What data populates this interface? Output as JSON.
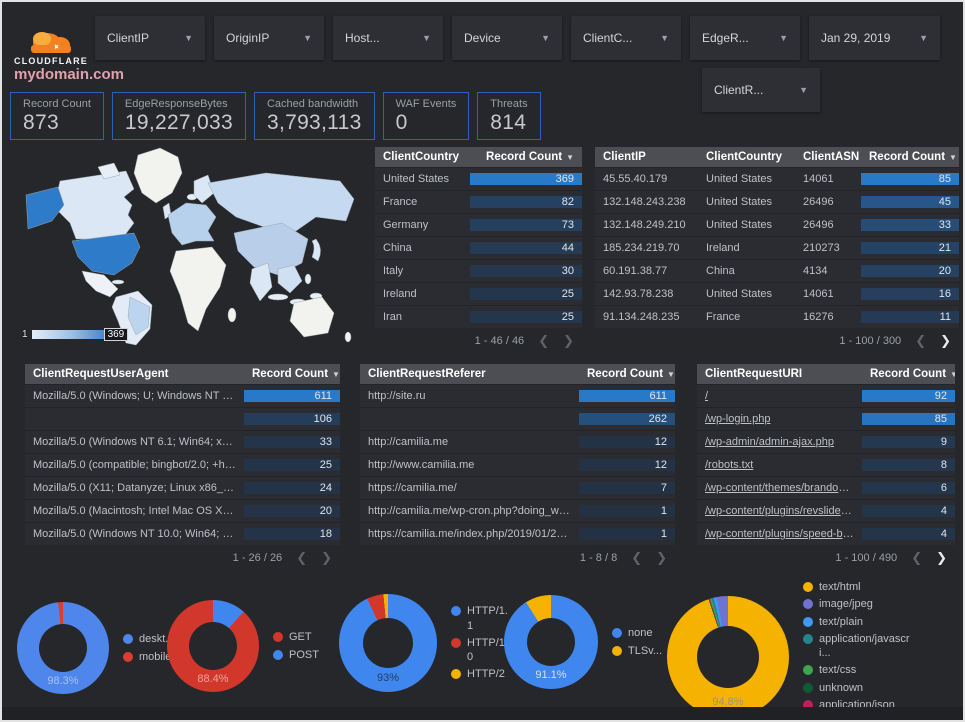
{
  "header": {
    "logo_text": "CLOUDFLARE",
    "filters": [
      {
        "label": "ClientIP"
      },
      {
        "label": "OriginIP"
      },
      {
        "label": "Host..."
      },
      {
        "label": "Device"
      },
      {
        "label": "ClientC..."
      },
      {
        "label": "EdgeR..."
      }
    ],
    "date_filter": {
      "label": "Jan 29, 2019"
    },
    "filter_row2": {
      "label": "ClientR..."
    }
  },
  "title": "mydomain.com",
  "colors": {
    "accent_blue": "#2979c9",
    "heat_base": "#243143",
    "scorecard_border": "#2c62b5",
    "title_pink": "#e2a0ad"
  },
  "scorecards": [
    {
      "label": "Record Count",
      "value": "873"
    },
    {
      "label": "EdgeResponseBytes",
      "value": "19,227,033"
    },
    {
      "label": "Cached bandwidth",
      "value": "3,793,113"
    },
    {
      "label": "WAF Events",
      "value": "0"
    },
    {
      "label": "Threats",
      "value": "814"
    }
  ],
  "map": {
    "legend_min": "1",
    "legend_max": "369"
  },
  "tables": {
    "country": {
      "columns": [
        "ClientCountry",
        "Record Count"
      ],
      "num_col": 1,
      "max": 369,
      "first_col_links": false,
      "rows": [
        [
          "United States",
          369
        ],
        [
          "France",
          82
        ],
        [
          "Germany",
          73
        ],
        [
          "China",
          44
        ],
        [
          "Italy",
          30
        ],
        [
          "Ireland",
          25
        ],
        [
          "Iran",
          25
        ]
      ],
      "pagination": {
        "text": "1 - 46 / 46",
        "prev_active": false,
        "next_active": false
      }
    },
    "client_ip": {
      "columns": [
        "ClientIP",
        "ClientCountry",
        "ClientASN",
        "Record Count"
      ],
      "num_col": 3,
      "max": 85,
      "first_col_links": false,
      "rows": [
        [
          "45.55.40.179",
          "United States",
          "14061",
          85
        ],
        [
          "132.148.243.238",
          "United States",
          "26496",
          45
        ],
        [
          "132.148.249.210",
          "United States",
          "26496",
          33
        ],
        [
          "185.234.219.70",
          "Ireland",
          "210273",
          21
        ],
        [
          "60.191.38.77",
          "China",
          "4134",
          20
        ],
        [
          "142.93.78.238",
          "United States",
          "14061",
          16
        ],
        [
          "91.134.248.235",
          "France",
          "16276",
          11
        ]
      ],
      "pagination": {
        "text": "1 - 100 / 300",
        "prev_active": false,
        "next_active": true
      }
    },
    "user_agent": {
      "columns": [
        "ClientRequestUserAgent",
        "Record Count"
      ],
      "num_col": 1,
      "max": 611,
      "first_col_links": false,
      "rows": [
        [
          "Mozilla/5.0 (Windows; U; Windows NT 5.1; en-U...",
          611
        ],
        [
          "",
          106
        ],
        [
          "Mozilla/5.0 (Windows NT 6.1; Win64; x64; rv:64...",
          33
        ],
        [
          "Mozilla/5.0 (compatible; bingbot/2.0; +http://w...",
          25
        ],
        [
          "Mozilla/5.0 (X11; Datanyze; Linux x86_64) Appl...",
          24
        ],
        [
          "Mozilla/5.0 (Macintosh; Intel Mac OS X 10.11; r...",
          20
        ],
        [
          "Mozilla/5.0 (Windows NT 10.0; Win64; x64) App...",
          18
        ]
      ],
      "pagination": {
        "text": "1 - 26 / 26",
        "prev_active": false,
        "next_active": false
      }
    },
    "referer": {
      "columns": [
        "ClientRequestReferer",
        "Record Count"
      ],
      "num_col": 1,
      "max": 611,
      "first_col_links": false,
      "rows": [
        [
          "http://site.ru",
          611
        ],
        [
          "",
          262
        ],
        [
          "http://camilia.me",
          12
        ],
        [
          "http://www.camilia.me",
          12
        ],
        [
          "https://camilia.me/",
          7
        ],
        [
          "http://camilia.me/wp-cron.php?doing_wp_cron...",
          1
        ],
        [
          "https://camilia.me/index.php/2019/01/26/stor...",
          1
        ]
      ],
      "pagination": {
        "text": "1 - 8 / 8",
        "prev_active": false,
        "next_active": false
      }
    },
    "uri": {
      "columns": [
        "ClientRequestURI",
        "Record Count"
      ],
      "num_col": 1,
      "max": 92,
      "first_col_links": true,
      "rows": [
        [
          "/",
          92
        ],
        [
          "/wp-login.php",
          85
        ],
        [
          "/wp-admin/admin-ajax.php",
          9
        ],
        [
          "/robots.txt",
          8
        ],
        [
          "/wp-content/themes/brandon/plu...",
          6
        ],
        [
          "/wp-content/plugins/revslider/rs-p...",
          4
        ],
        [
          "/wp-content/plugins/speed-booste...",
          4
        ]
      ],
      "pagination": {
        "text": "1 - 100 / 490",
        "prev_active": false,
        "next_active": true
      }
    }
  },
  "chart_data": [
    {
      "type": "pie",
      "name": "device-type",
      "label": "98.3%",
      "label_color": "#a9c3f3",
      "size": 92,
      "hole": 48,
      "segments": [
        {
          "label": "deskt...",
          "value": 98.3,
          "color": "#4e86ec"
        },
        {
          "label": "mobile",
          "value": 1.7,
          "color": "#dc3d2e"
        }
      ],
      "legend": [
        {
          "label": "deskt...",
          "color": "#4e86ec"
        },
        {
          "label": "mobile",
          "color": "#dc3d2e"
        }
      ],
      "narrow_legend": false,
      "pager": false
    },
    {
      "type": "pie",
      "name": "request-method",
      "label": "88.4%",
      "label_color": "#f0a59e",
      "size": 92,
      "hole": 48,
      "segments": [
        {
          "label": "POST",
          "value": 11.6,
          "color": "#3f87ee"
        },
        {
          "label": "GET",
          "value": 88.4,
          "color": "#d2372c"
        }
      ],
      "legend": [
        {
          "label": "GET",
          "color": "#d2372c"
        },
        {
          "label": "POST",
          "color": "#3f87ee"
        }
      ],
      "narrow_legend": false,
      "pager": false
    },
    {
      "type": "pie",
      "name": "http-version",
      "label": "93%",
      "label_color": "#1d3f66",
      "size": 98,
      "hole": 50,
      "segments": [
        {
          "label": "HTTP/1.1",
          "value": 93,
          "color": "#3f87ee"
        },
        {
          "label": "HTTP/1.0",
          "value": 5.5,
          "color": "#d2372c"
        },
        {
          "label": "HTTP/2",
          "value": 1.5,
          "color": "#f5b300"
        }
      ],
      "legend": [
        {
          "label": "HTTP/1.1",
          "color": "#3f87ee"
        },
        {
          "label": "HTTP/1.0",
          "color": "#d2372c"
        },
        {
          "label": "HTTP/2",
          "color": "#f5b300"
        }
      ],
      "narrow_legend": true,
      "pager": false
    },
    {
      "type": "pie",
      "name": "tls-version",
      "label": "91.1%",
      "label_color": "#cfe0f7",
      "size": 94,
      "hole": 48,
      "segments": [
        {
          "label": "none",
          "value": 91.1,
          "color": "#3f87ee"
        },
        {
          "label": "TLSv...",
          "value": 8.9,
          "color": "#f5b300"
        }
      ],
      "legend": [
        {
          "label": "none",
          "color": "#3f87ee"
        },
        {
          "label": "TLSv...",
          "color": "#f5b300"
        }
      ],
      "narrow_legend": false,
      "pager": false
    },
    {
      "type": "pie",
      "name": "content-type",
      "label": "94.8%",
      "label_color": "#9a9480",
      "size": 122,
      "hole": 62,
      "segments": [
        {
          "label": "text/html",
          "value": 94.8,
          "color": "#f5b300"
        },
        {
          "label": "unknown",
          "value": 0.2,
          "color": "#0e5b38"
        },
        {
          "label": "application/json",
          "value": 0.2,
          "color": "#bd2158"
        },
        {
          "label": "text/css",
          "value": 0.4,
          "color": "#3da44f"
        },
        {
          "label": "application/javascri...",
          "value": 0.6,
          "color": "#26848c"
        },
        {
          "label": "text/plain",
          "value": 0.8,
          "color": "#4097f5"
        },
        {
          "label": "image/jpeg",
          "value": 3.0,
          "color": "#6e73d1"
        }
      ],
      "legend": [
        {
          "label": "text/html",
          "color": "#f5b300"
        },
        {
          "label": "image/jpeg",
          "color": "#6e73d1"
        },
        {
          "label": "text/plain",
          "color": "#4097f5"
        },
        {
          "label": "application/javascri...",
          "color": "#26848c"
        },
        {
          "label": "text/css",
          "color": "#3da44f"
        },
        {
          "label": "unknown",
          "color": "#0e5b38"
        },
        {
          "label": "application/json",
          "color": "#bd2158"
        }
      ],
      "narrow_legend": false,
      "pager": true
    }
  ],
  "legend_pager": {
    "up": "▲",
    "down": "▼"
  }
}
